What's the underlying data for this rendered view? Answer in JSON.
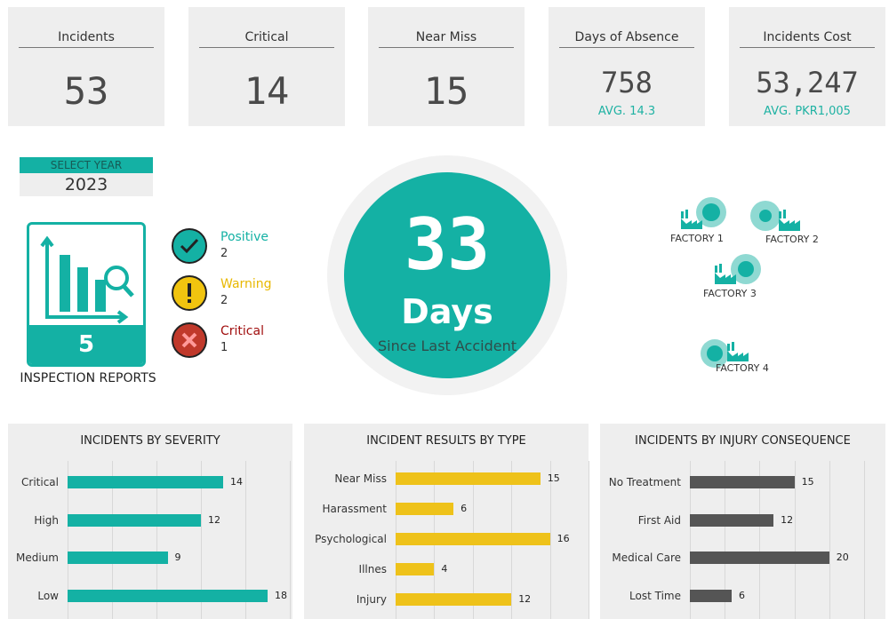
{
  "kpis": {
    "incidents": {
      "label": "Incidents",
      "value": "53"
    },
    "critical": {
      "label": "Critical",
      "value": "14"
    },
    "near_miss": {
      "label": "Near Miss",
      "value": "15"
    },
    "absence": {
      "label": "Days of Absence",
      "value": "758",
      "sub": "AVG. 14.3"
    },
    "cost": {
      "label": "Incidents Cost",
      "value": "53,247",
      "sub": "AVG. PKR1,005"
    }
  },
  "year_select": {
    "label": "SELECT YEAR",
    "value": "2023"
  },
  "inspection": {
    "count": "5",
    "caption": "INSPECTION REPORTS"
  },
  "statuses": [
    {
      "name": "Positive",
      "count": "2",
      "color": "#14b1a4",
      "icon": "check-icon"
    },
    {
      "name": "Warning",
      "count": "2",
      "color": "#e8b800",
      "icon": "exclamation-icon"
    },
    {
      "name": "Critical",
      "count": "1",
      "color": "#a10f0f",
      "icon": "x-icon"
    }
  ],
  "since_accident": {
    "number": "33",
    "unit": "Days",
    "caption": "Since Last Accident"
  },
  "factories": [
    {
      "label": "FACTORY 1"
    },
    {
      "label": "FACTORY 2"
    },
    {
      "label": "FACTORY 3"
    },
    {
      "label": "FACTORY 4"
    }
  ],
  "chart_data": [
    {
      "type": "bar",
      "orientation": "horizontal",
      "title": "INCIDENTS BY SEVERITY",
      "categories": [
        "Critical",
        "High",
        "Medium",
        "Low"
      ],
      "values": [
        14,
        12,
        9,
        18
      ],
      "color": "#14b1a4",
      "xlim": [
        0,
        20
      ]
    },
    {
      "type": "bar",
      "orientation": "horizontal",
      "title": "INCIDENT RESULTS BY TYPE",
      "categories": [
        "Near Miss",
        "Harassment",
        "Psychological",
        "Illnes",
        "Injury"
      ],
      "values": [
        15,
        6,
        16,
        4,
        12
      ],
      "color": "#eec21a",
      "xlim": [
        0,
        20
      ]
    },
    {
      "type": "bar",
      "orientation": "horizontal",
      "title": "INCIDENTS BY INJURY CONSEQUENCE",
      "categories": [
        "No Treatment",
        "First Aid",
        "Medical Care",
        "Lost Time"
      ],
      "values": [
        15,
        12,
        20,
        6
      ],
      "color": "#555555",
      "xlim": [
        0,
        25
      ]
    }
  ],
  "colors": {
    "accent": "#14b1a4",
    "warning": "#e8b800",
    "critical": "#a10f0f"
  }
}
